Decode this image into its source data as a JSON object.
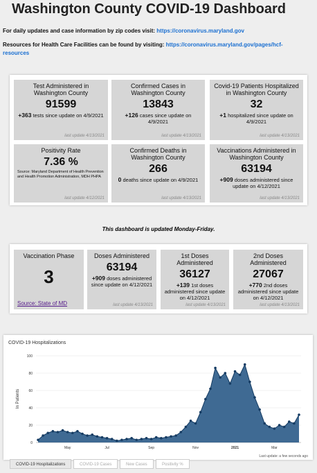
{
  "header": {
    "title": "Washington County COVID-19 Dashboard",
    "line1": "For daily updates and case information by zip codes visit:",
    "link1": "https://coronavirus.maryland.gov",
    "line2": "Resources for Health Care Facilities can be found by visiting:",
    "link2": "https://coronavirus.maryland.gov/pages/hcf-resources"
  },
  "cards": [
    {
      "title": "Test Administered in Washington County",
      "value": "91599",
      "delta": "+363",
      "detail": "tests since update on 4/9/2021",
      "note": "last update 4/13/2021"
    },
    {
      "title": "Confirmed Cases in Washington County",
      "value": "13843",
      "delta": "+126",
      "detail": "cases since update on 4/9/2021",
      "note": "last update 4/13/2021"
    },
    {
      "title": "Covid-19 Patients Hospitalized in Washington County",
      "value": "32",
      "delta": "+1",
      "detail": "hospitalized since update on 4/9/2021",
      "note": "last update 4/13/2021"
    },
    {
      "title": "Positivity Rate",
      "value": "7.36 %",
      "source": "Source: Maryland Department of Health Prevention and Health Promotion Administration, MDH PHPA",
      "note": "last update 4/12/2021"
    },
    {
      "title": "Confirmed Deaths in Washington County",
      "value": "266",
      "delta": "0",
      "detail": "deaths since update on 4/9/2021",
      "note": "last update 4/13/2021"
    },
    {
      "title": "Vaccinations Administered in Washington County",
      "value": "63194",
      "delta": "+909",
      "detail": "doses administered since update on 4/12/2021",
      "note": "last update 4/13/2021"
    }
  ],
  "notice": "This dashboard is updated Monday-Friday.",
  "vaccine_cards": [
    {
      "title": "Vaccination Phase",
      "value": "3",
      "link": "Source: State of MD"
    },
    {
      "title": "Doses Administered",
      "value": "63194",
      "delta": "+909",
      "detail": "doses administered since update on 4/12/2021",
      "note": "last update 4/13/2021"
    },
    {
      "title": "1st Doses Administered",
      "value": "36127",
      "delta": "+139",
      "detail": "1st doses administered since update on 4/12/2021",
      "note": "last update 4/13/2021"
    },
    {
      "title": "2nd Doses Administered",
      "value": "27067",
      "delta": "+770",
      "detail": "2nd doses administered since update on 4/12/2021",
      "note": "last update 4/13/2021"
    }
  ],
  "chart_data": {
    "type": "area",
    "title": "COVID-19 Hospitalizations",
    "y_label": "In Patients",
    "footnote": "Last update: a few seconds ago",
    "color": "#3f6a93",
    "line_color": "#163c63",
    "categories": [
      null,
      null,
      null,
      null,
      null,
      null,
      "May",
      null,
      null,
      null,
      null,
      null,
      null,
      null,
      "Jul",
      null,
      null,
      null,
      null,
      null,
      null,
      null,
      null,
      "Sep",
      null,
      null,
      null,
      null,
      null,
      null,
      null,
      null,
      "Nov",
      null,
      null,
      null,
      null,
      null,
      null,
      null,
      "2021",
      null,
      null,
      null,
      null,
      null,
      null,
      null,
      "Mar",
      null,
      null,
      null,
      null,
      null
    ],
    "values": [
      3,
      8,
      11,
      13,
      12,
      14,
      12,
      11,
      13,
      10,
      8,
      9,
      7,
      6,
      5,
      4,
      2,
      3,
      4,
      5,
      3,
      4,
      5,
      4,
      6,
      5,
      6,
      7,
      8,
      12,
      18,
      25,
      22,
      35,
      50,
      62,
      86,
      75,
      80,
      68,
      82,
      78,
      90,
      70,
      52,
      38,
      22,
      18,
      16,
      20,
      18,
      24,
      22,
      32
    ],
    "ylim": [
      0,
      100
    ],
    "yticks": [
      0,
      20,
      40,
      60,
      80,
      100
    ],
    "grid": true,
    "tabs": [
      "COVID-19 Hospitalizations",
      "COVID-19 Cases",
      "New Cases",
      "Positivity %"
    ]
  }
}
